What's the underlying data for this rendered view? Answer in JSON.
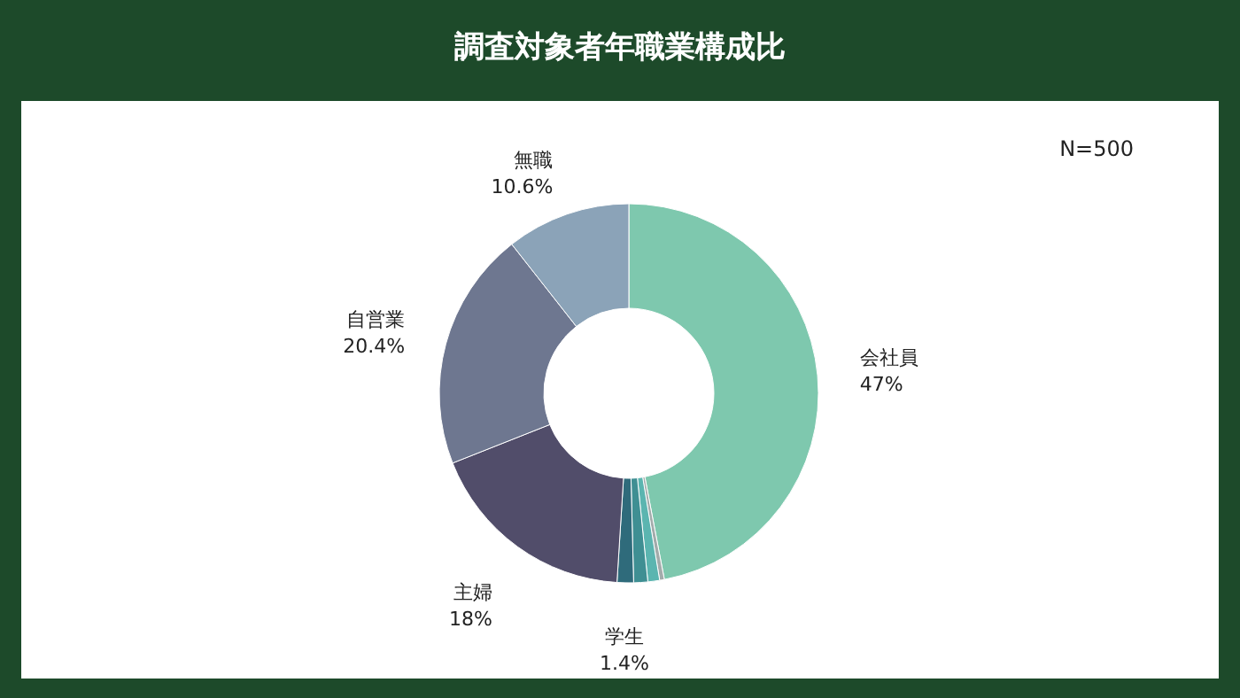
{
  "chart_data": {
    "type": "donut",
    "title": "調査対象者年職業構成比",
    "categories": [
      "会社員",
      null,
      null,
      null,
      "学生",
      "主婦",
      "自営業",
      "無職"
    ],
    "values": [
      47,
      0.4,
      1.0,
      1.2,
      1.4,
      18,
      20.4,
      10.6
    ],
    "value_labels": [
      "47%",
      null,
      null,
      null,
      "1.4%",
      "18%",
      "20.4%",
      "10.6%"
    ],
    "colors": [
      "#7ec8ae",
      "#a3abab",
      "#5bb5b0",
      "#3f8f93",
      "#2f6b7b",
      "#514d6a",
      "#6e7790",
      "#8ba3b8"
    ],
    "annotations": [
      "N=500"
    ],
    "legend": false
  }
}
